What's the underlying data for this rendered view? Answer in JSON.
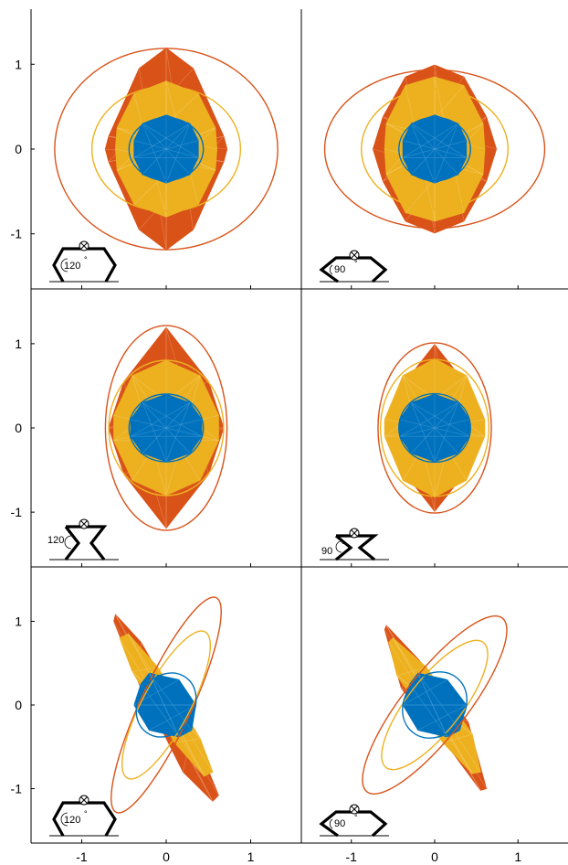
{
  "chart_data": {
    "type": "polytope-ellipse-grid",
    "xlim": [
      -1.6,
      1.6
    ],
    "ylim": [
      -1.65,
      1.65
    ],
    "x_ticks": [
      -1,
      0,
      1
    ],
    "y_ticks": [
      -1,
      0,
      1
    ],
    "x_tick_labels": [
      "-1",
      "0",
      "1"
    ],
    "y_tick_labels": [
      "1",
      "0",
      "-1"
    ],
    "colors": {
      "blue": "#0072BD",
      "orange": "#D95319",
      "yellow": "#EDB120",
      "axis": "#000000"
    },
    "panels": [
      {
        "row": 0,
        "col": 0,
        "angle_label": "120",
        "robot": "horizontal-120",
        "orange_poly": [
          [
            0,
            1.19
          ],
          [
            0.32,
            0.95
          ],
          [
            0.68,
            0.15
          ],
          [
            0.72,
            0
          ],
          [
            0.68,
            -0.15
          ],
          [
            0.32,
            -0.95
          ],
          [
            0,
            -1.19
          ],
          [
            -0.32,
            -0.95
          ],
          [
            -0.68,
            -0.15
          ],
          [
            -0.72,
            0
          ],
          [
            -0.68,
            0.15
          ],
          [
            -0.32,
            0.95
          ]
        ],
        "yellow_poly": [
          [
            0,
            0.8
          ],
          [
            0.38,
            0.65
          ],
          [
            0.58,
            0.25
          ],
          [
            0.6,
            0
          ],
          [
            0.58,
            -0.25
          ],
          [
            0.38,
            -0.65
          ],
          [
            0,
            -0.8
          ],
          [
            -0.38,
            -0.65
          ],
          [
            -0.58,
            -0.25
          ],
          [
            -0.6,
            0
          ],
          [
            -0.58,
            0.25
          ],
          [
            -0.38,
            0.65
          ]
        ],
        "blue_poly": [
          [
            0,
            0.4
          ],
          [
            0.28,
            0.3
          ],
          [
            0.38,
            0.1
          ],
          [
            0.38,
            -0.1
          ],
          [
            0.28,
            -0.3
          ],
          [
            0,
            -0.4
          ],
          [
            -0.28,
            -0.3
          ],
          [
            -0.38,
            -0.1
          ],
          [
            -0.38,
            0.1
          ],
          [
            -0.28,
            0.3
          ]
        ],
        "ellipses": [
          {
            "color": "orange",
            "cx": 0,
            "cy": 0,
            "rx": 1.32,
            "ry": 1.19,
            "angle": 0
          },
          {
            "color": "yellow",
            "cx": 0,
            "cy": 0,
            "rx": 0.88,
            "ry": 0.74,
            "angle": 0
          },
          {
            "color": "blue",
            "cx": 0,
            "cy": 0,
            "rx": 0.44,
            "ry": 0.37,
            "angle": 0
          }
        ]
      },
      {
        "row": 0,
        "col": 1,
        "angle_label": "90",
        "robot": "horizontal-90",
        "orange_poly": [
          [
            0,
            0.99
          ],
          [
            0.35,
            0.85
          ],
          [
            0.62,
            0.38
          ],
          [
            0.74,
            0
          ],
          [
            0.62,
            -0.38
          ],
          [
            0.35,
            -0.85
          ],
          [
            0,
            -0.99
          ],
          [
            -0.35,
            -0.85
          ],
          [
            -0.62,
            -0.38
          ],
          [
            -0.74,
            0
          ],
          [
            -0.62,
            0.38
          ],
          [
            -0.35,
            0.85
          ]
        ],
        "yellow_poly": [
          [
            0,
            0.85
          ],
          [
            0.35,
            0.75
          ],
          [
            0.58,
            0.3
          ],
          [
            0.6,
            0
          ],
          [
            0.58,
            -0.3
          ],
          [
            0.35,
            -0.75
          ],
          [
            0,
            -0.85
          ],
          [
            -0.35,
            -0.75
          ],
          [
            -0.58,
            -0.3
          ],
          [
            -0.6,
            0
          ],
          [
            -0.58,
            0.3
          ],
          [
            -0.35,
            0.75
          ]
        ],
        "blue_poly": [
          [
            0,
            0.4
          ],
          [
            0.28,
            0.3
          ],
          [
            0.38,
            0.1
          ],
          [
            0.38,
            -0.1
          ],
          [
            0.28,
            -0.3
          ],
          [
            0,
            -0.4
          ],
          [
            -0.28,
            -0.3
          ],
          [
            -0.38,
            -0.1
          ],
          [
            -0.38,
            0.1
          ],
          [
            -0.28,
            0.3
          ]
        ],
        "ellipses": [
          {
            "color": "orange",
            "cx": 0,
            "cy": 0,
            "rx": 1.32,
            "ry": 0.95,
            "angle": 0
          },
          {
            "color": "yellow",
            "cx": 0,
            "cy": 0,
            "rx": 0.88,
            "ry": 0.72,
            "angle": 0
          },
          {
            "color": "blue",
            "cx": 0,
            "cy": 0,
            "rx": 0.43,
            "ry": 0.38,
            "angle": 0
          }
        ]
      },
      {
        "row": 1,
        "col": 0,
        "angle_label": "120",
        "robot": "vertical-120",
        "orange_poly": [
          [
            0,
            1.19
          ],
          [
            0.5,
            0.55
          ],
          [
            0.68,
            0
          ],
          [
            0.5,
            -0.55
          ],
          [
            0,
            -1.19
          ],
          [
            -0.5,
            -0.55
          ],
          [
            -0.68,
            0
          ],
          [
            -0.5,
            0.55
          ]
        ],
        "yellow_poly": [
          [
            0,
            0.8
          ],
          [
            0.4,
            0.62
          ],
          [
            0.62,
            0.15
          ],
          [
            0.62,
            -0.15
          ],
          [
            0.4,
            -0.62
          ],
          [
            0,
            -0.8
          ],
          [
            -0.4,
            -0.62
          ],
          [
            -0.62,
            -0.15
          ],
          [
            -0.62,
            0.15
          ],
          [
            -0.4,
            0.62
          ]
        ],
        "blue_poly": [
          [
            0,
            0.4
          ],
          [
            0.28,
            0.3
          ],
          [
            0.42,
            0.1
          ],
          [
            0.42,
            -0.1
          ],
          [
            0.28,
            -0.3
          ],
          [
            0,
            -0.4
          ],
          [
            -0.28,
            -0.3
          ],
          [
            -0.42,
            -0.1
          ],
          [
            -0.42,
            0.1
          ],
          [
            -0.28,
            0.3
          ]
        ],
        "ellipses": [
          {
            "color": "orange",
            "cx": 0,
            "cy": 0,
            "rx": 0.72,
            "ry": 1.21,
            "angle": 0
          },
          {
            "color": "yellow",
            "cx": 0,
            "cy": 0,
            "rx": 0.68,
            "ry": 0.8,
            "angle": 0
          },
          {
            "color": "blue",
            "cx": 0,
            "cy": 0,
            "rx": 0.44,
            "ry": 0.4,
            "angle": 0
          }
        ]
      },
      {
        "row": 1,
        "col": 1,
        "angle_label": "90",
        "robot": "vertical-90",
        "orange_poly": [
          [
            0,
            0.99
          ],
          [
            0.35,
            0.55
          ],
          [
            0.6,
            0
          ],
          [
            0.35,
            -0.55
          ],
          [
            0,
            -0.99
          ],
          [
            -0.35,
            -0.55
          ],
          [
            -0.6,
            0
          ],
          [
            -0.35,
            0.55
          ]
        ],
        "yellow_poly": [
          [
            0,
            0.82
          ],
          [
            0.38,
            0.62
          ],
          [
            0.6,
            0.1
          ],
          [
            0.6,
            -0.1
          ],
          [
            0.38,
            -0.62
          ],
          [
            0,
            -0.82
          ],
          [
            -0.38,
            -0.62
          ],
          [
            -0.6,
            -0.1
          ],
          [
            -0.6,
            0.1
          ],
          [
            -0.38,
            0.62
          ]
        ],
        "blue_poly": [
          [
            0,
            0.4
          ],
          [
            0.28,
            0.3
          ],
          [
            0.42,
            0.1
          ],
          [
            0.42,
            -0.1
          ],
          [
            0.28,
            -0.3
          ],
          [
            0,
            -0.4
          ],
          [
            -0.28,
            -0.3
          ],
          [
            -0.42,
            -0.1
          ],
          [
            -0.42,
            0.1
          ],
          [
            -0.28,
            0.3
          ]
        ],
        "ellipses": [
          {
            "color": "orange",
            "cx": 0,
            "cy": 0,
            "rx": 0.68,
            "ry": 1.02,
            "angle": 0
          },
          {
            "color": "yellow",
            "cx": 0,
            "cy": 0,
            "rx": 0.65,
            "ry": 0.82,
            "angle": 0
          },
          {
            "color": "blue",
            "cx": 0,
            "cy": 0,
            "rx": 0.43,
            "ry": 0.41,
            "angle": 0
          }
        ]
      },
      {
        "row": 2,
        "col": 0,
        "angle_label": "120",
        "robot": "horizontal-120",
        "orange_poly": [
          [
            -0.6,
            1.08
          ],
          [
            -0.3,
            0.75
          ],
          [
            0.3,
            -0.3
          ],
          [
            0.62,
            -1.08
          ],
          [
            0.55,
            -1.15
          ],
          [
            0.2,
            -0.8
          ],
          [
            -0.3,
            0.2
          ],
          [
            -0.62,
            1.0
          ]
        ],
        "yellow_poly": [
          [
            -0.45,
            0.85
          ],
          [
            -0.1,
            0.45
          ],
          [
            0.4,
            -0.4
          ],
          [
            0.55,
            -0.8
          ],
          [
            0.45,
            -0.85
          ],
          [
            0.1,
            -0.45
          ],
          [
            -0.4,
            0.4
          ],
          [
            -0.55,
            0.8
          ]
        ],
        "blue_poly": [
          [
            -0.2,
            0.38
          ],
          [
            0.15,
            0.3
          ],
          [
            0.35,
            0
          ],
          [
            0.3,
            -0.3
          ],
          [
            0.15,
            -0.38
          ],
          [
            -0.2,
            -0.3
          ],
          [
            -0.38,
            0
          ],
          [
            -0.3,
            0.25
          ]
        ],
        "ellipses": [
          {
            "color": "orange",
            "cx": 0,
            "cy": 0,
            "rx": 1.4,
            "ry": 0.3,
            "angle": -65
          },
          {
            "color": "yellow",
            "cx": 0,
            "cy": 0,
            "rx": 0.98,
            "ry": 0.28,
            "angle": -62
          },
          {
            "color": "blue",
            "cx": 0,
            "cy": 0,
            "rx": 0.4,
            "ry": 0.33,
            "angle": -55
          }
        ]
      },
      {
        "row": 2,
        "col": 1,
        "angle_label": "90",
        "robot": "horizontal-90",
        "orange_poly": [
          [
            -0.58,
            0.95
          ],
          [
            -0.2,
            0.55
          ],
          [
            0.4,
            -0.2
          ],
          [
            0.62,
            -1.0
          ],
          [
            0.55,
            -1.02
          ],
          [
            0.2,
            -0.55
          ],
          [
            -0.4,
            0.2
          ],
          [
            -0.6,
            0.9
          ]
        ],
        "yellow_poly": [
          [
            -0.5,
            0.8
          ],
          [
            -0.1,
            0.45
          ],
          [
            0.45,
            -0.35
          ],
          [
            0.55,
            -0.8
          ],
          [
            0.45,
            -0.82
          ],
          [
            0.1,
            -0.45
          ],
          [
            -0.45,
            0.35
          ],
          [
            -0.55,
            0.75
          ]
        ],
        "blue_poly": [
          [
            -0.2,
            0.38
          ],
          [
            0.15,
            0.3
          ],
          [
            0.38,
            0
          ],
          [
            0.3,
            -0.3
          ],
          [
            0.15,
            -0.38
          ],
          [
            -0.2,
            -0.3
          ],
          [
            -0.38,
            0
          ],
          [
            -0.3,
            0.25
          ]
        ],
        "ellipses": [
          {
            "color": "orange",
            "cx": 0,
            "cy": 0,
            "rx": 1.32,
            "ry": 0.38,
            "angle": -52
          },
          {
            "color": "yellow",
            "cx": 0,
            "cy": 0,
            "rx": 0.95,
            "ry": 0.32,
            "angle": -52
          },
          {
            "color": "blue",
            "cx": 0,
            "cy": 0,
            "rx": 0.42,
            "ry": 0.36,
            "angle": -50
          }
        ]
      }
    ]
  }
}
